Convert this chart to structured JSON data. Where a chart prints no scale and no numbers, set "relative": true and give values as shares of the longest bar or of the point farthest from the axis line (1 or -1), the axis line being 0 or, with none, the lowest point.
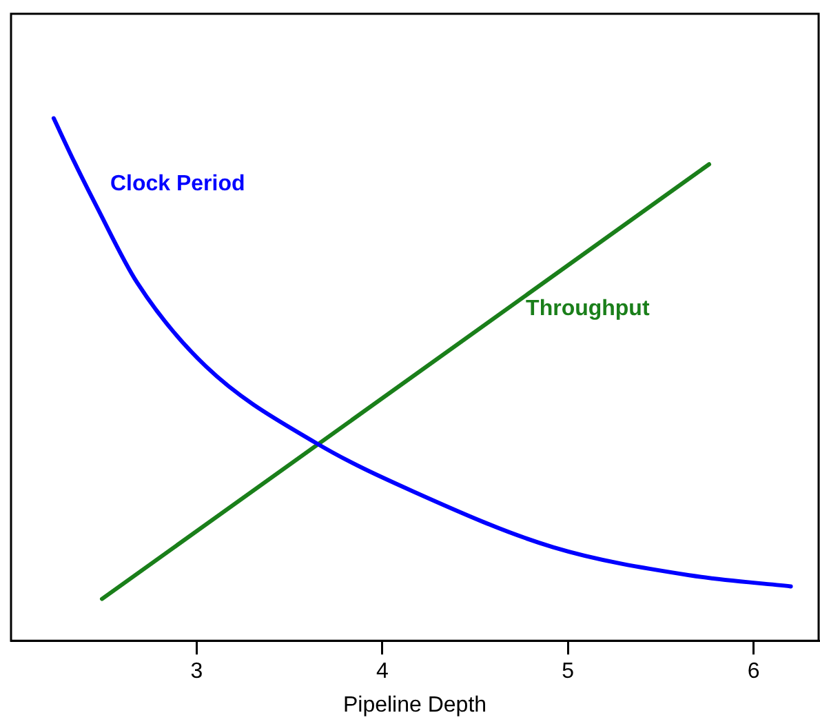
{
  "chart_data": {
    "type": "line",
    "relative": true,
    "xlabel": "Pipeline Depth",
    "xlim": [
      2,
      6.35
    ],
    "xticks": [
      3,
      4,
      5,
      6
    ],
    "grid": false,
    "legend": false,
    "marker": "none",
    "line_style": "solid",
    "series": [
      {
        "name": "Clock Period",
        "color": "#0000ff",
        "x": [
          2.23,
          2.34,
          2.46,
          2.68,
          3.05,
          3.64,
          4.17,
          4.92,
          5.66,
          6.2
        ],
        "values": [
          1,
          0.917,
          0.832,
          0.685,
          0.525,
          0.379,
          0.285,
          0.179,
          0.125,
          0.104
        ]
      },
      {
        "name": "Throughput",
        "color": "#1a7f1a",
        "x": [
          2.49,
          5.76
        ],
        "values": [
          0.08,
          0.912
        ]
      }
    ]
  }
}
